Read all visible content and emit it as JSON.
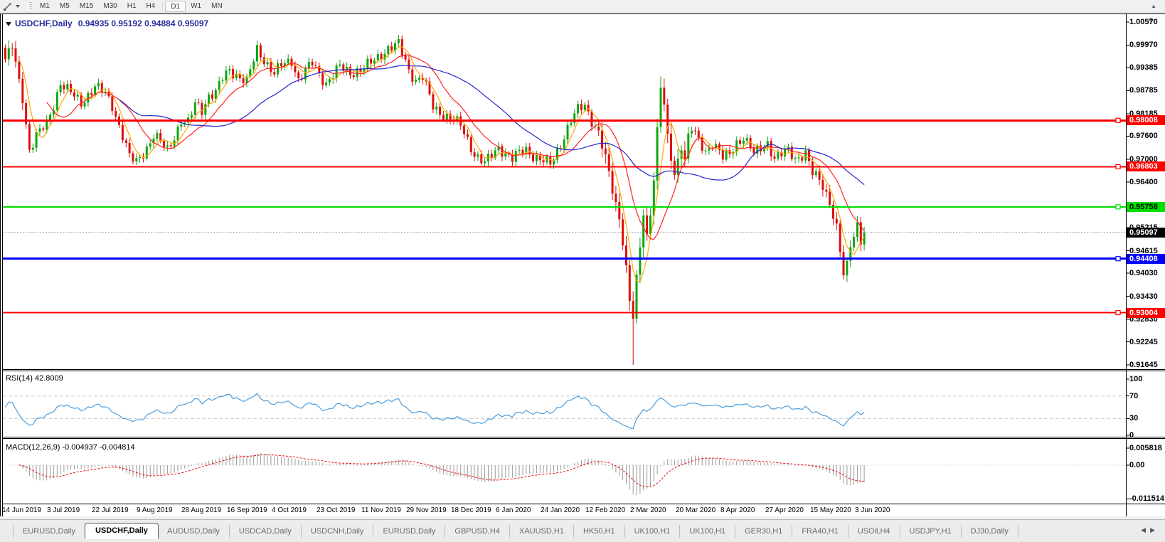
{
  "toolbar": {
    "timeframes": [
      "M1",
      "M5",
      "M15",
      "M30",
      "H1",
      "H4",
      "D1",
      "W1",
      "MN"
    ],
    "active_timeframe": "D1"
  },
  "window": {
    "title_symbol": "USDCHF,Daily",
    "ohlc_text": "0.94935 0.95192 0.94884 0.95097",
    "open": "0.94935",
    "high": "0.95192",
    "low": "0.94884",
    "close": "0.95097"
  },
  "price_axis": {
    "ticks": [
      {
        "v": 1.0057,
        "label": "1.00570"
      },
      {
        "v": 0.9997,
        "label": "0.99970"
      },
      {
        "v": 0.99385,
        "label": "0.99385"
      },
      {
        "v": 0.98785,
        "label": "0.98785"
      },
      {
        "v": 0.98185,
        "label": "0.98185"
      },
      {
        "v": 0.976,
        "label": "0.97600"
      },
      {
        "v": 0.97,
        "label": "0.97000"
      },
      {
        "v": 0.964,
        "label": "0.96400"
      },
      {
        "v": 0.95215,
        "label": "0.95215"
      },
      {
        "v": 0.94615,
        "label": "0.94615"
      },
      {
        "v": 0.9403,
        "label": "0.94030"
      },
      {
        "v": 0.9343,
        "label": "0.93430"
      },
      {
        "v": 0.9283,
        "label": "0.92830"
      },
      {
        "v": 0.92245,
        "label": "0.92245"
      },
      {
        "v": 0.91645,
        "label": "0.91645"
      }
    ]
  },
  "hlines": [
    {
      "value": 0.98008,
      "label": "0.98008",
      "color": "#FF0000",
      "text_color": "#FFFFFF",
      "width": 3
    },
    {
      "value": 0.96803,
      "label": "0.96803",
      "color": "#FF0000",
      "text_color": "#FFFFFF",
      "width": 2
    },
    {
      "value": 0.95758,
      "label": "0.95758",
      "color": "#00DE00",
      "text_color": "#000000",
      "width": 2
    },
    {
      "value": 0.94408,
      "label": "0.94408",
      "color": "#0000FF",
      "text_color": "#FFFFFF",
      "width": 3
    },
    {
      "value": 0.93004,
      "label": "0.93004",
      "color": "#FF0000",
      "text_color": "#FFFFFF",
      "width": 2
    }
  ],
  "current_price": {
    "value": 0.95097,
    "label": "0.95097"
  },
  "rsi_panel": {
    "label": "RSI(14) 42.8009",
    "value": 42.8009,
    "ticks": [
      {
        "v": 100,
        "label": "100"
      },
      {
        "v": 70,
        "label": "70"
      },
      {
        "v": 30,
        "label": "30"
      },
      {
        "v": 0,
        "label": "0"
      }
    ],
    "levels": [
      70,
      30
    ]
  },
  "macd_panel": {
    "label": "MACD(12,26,9) -0.004937 -0.004814",
    "macd_value": -0.004937,
    "signal_value": -0.004814,
    "ticks": [
      {
        "v": 0.005818,
        "label": "0.005818"
      },
      {
        "v": 0,
        "label": "0.00"
      },
      {
        "v": -0.011514,
        "label": "-0.011514"
      }
    ]
  },
  "date_axis": [
    "14 Jun 2019",
    "3 Jul 2019",
    "22 Jul 2019",
    "9 Aug 2019",
    "28 Aug 2019",
    "16 Sep 2019",
    "4 Oct 2019",
    "23 Oct 2019",
    "11 Nov 2019",
    "29 Nov 2019",
    "18 Dec 2019",
    "6 Jan 2020",
    "24 Jan 2020",
    "12 Feb 2020",
    "2 Mar 2020",
    "20 Mar 2020",
    "8 Apr 2020",
    "27 Apr 2020",
    "15 May 2020",
    "3 Jun 2020"
  ],
  "tabs": [
    {
      "label": "EURUSD,Daily",
      "active": false
    },
    {
      "label": "USDCHF,Daily",
      "active": true
    },
    {
      "label": "AUDUSD,Daily",
      "active": false
    },
    {
      "label": "USDCAD,Daily",
      "active": false
    },
    {
      "label": "USDCNH,Daily",
      "active": false
    },
    {
      "label": "EURUSD,Daily",
      "active": false
    },
    {
      "label": "GBPUSD,H4",
      "active": false
    },
    {
      "label": "XAUUSD,H1",
      "active": false
    },
    {
      "label": "HK50,H1",
      "active": false
    },
    {
      "label": "UK100,H1",
      "active": false
    },
    {
      "label": "UK100,H1",
      "active": false
    },
    {
      "label": "GER30,H1",
      "active": false
    },
    {
      "label": "FRA40,H1",
      "active": false
    },
    {
      "label": "USOil,H4",
      "active": false
    },
    {
      "label": "USDJPY,H1",
      "active": false
    },
    {
      "label": "DJ30,Daily",
      "active": false
    }
  ],
  "colors": {
    "up": "#0FA50F",
    "down": "#DE0D0D",
    "ma_fast": "#FFA800",
    "ma_mid": "#FF2222",
    "ma_slow": "#2626CC",
    "rsi": "#4A9EDF",
    "rsi_level": "#c8c8c8",
    "macd_hist": "#9A9A9A",
    "macd_signal": "#E81010",
    "current_line": "#aaaaaa",
    "title": "#2b2b9b"
  },
  "chart_data": {
    "type": "candlestick",
    "symbol": "USDCHF",
    "timeframe": "Daily",
    "n_candles": 250,
    "price_range": [
      0.91645,
      1.0057
    ],
    "moving_averages": [
      {
        "name": "fast",
        "period": 5,
        "color": "#FFA800"
      },
      {
        "name": "medium",
        "period": 13,
        "color": "#FF2222"
      },
      {
        "name": "slow",
        "period": 34,
        "color": "#2626CC"
      }
    ],
    "indicators": [
      "RSI(14)",
      "MACD(12,26,9)"
    ],
    "close_waypoints": [
      [
        0,
        0.996
      ],
      [
        2,
        0.9992
      ],
      [
        4,
        0.99
      ],
      [
        5,
        0.986
      ],
      [
        7,
        0.9725
      ],
      [
        9,
        0.9762
      ],
      [
        12,
        0.979
      ],
      [
        14,
        0.9842
      ],
      [
        16,
        0.99
      ],
      [
        19,
        0.9872
      ],
      [
        22,
        0.9846
      ],
      [
        26,
        0.989
      ],
      [
        29,
        0.987
      ],
      [
        31,
        0.984
      ],
      [
        34,
        0.9762
      ],
      [
        36,
        0.9705
      ],
      [
        38,
        0.9692
      ],
      [
        41,
        0.973
      ],
      [
        43,
        0.9762
      ],
      [
        45,
        0.9744
      ],
      [
        47,
        0.9724
      ],
      [
        49,
        0.976
      ],
      [
        51,
        0.98
      ],
      [
        53,
        0.9792
      ],
      [
        55,
        0.9844
      ],
      [
        57,
        0.983
      ],
      [
        59,
        0.9866
      ],
      [
        61,
        0.9872
      ],
      [
        63,
        0.991
      ],
      [
        65,
        0.9934
      ],
      [
        67,
        0.992
      ],
      [
        70,
        0.99
      ],
      [
        72,
        0.9958
      ],
      [
        73,
        0.9986
      ],
      [
        75,
        0.996
      ],
      [
        78,
        0.9922
      ],
      [
        80,
        0.9944
      ],
      [
        83,
        0.9958
      ],
      [
        85,
        0.9906
      ],
      [
        87,
        0.993
      ],
      [
        89,
        0.995
      ],
      [
        91,
        0.9922
      ],
      [
        93,
        0.9898
      ],
      [
        95,
        0.9918
      ],
      [
        97,
        0.994
      ],
      [
        100,
        0.9926
      ],
      [
        103,
        0.9932
      ],
      [
        106,
        0.995
      ],
      [
        109,
        0.9974
      ],
      [
        111,
        0.9988
      ],
      [
        114,
        0.9998
      ],
      [
        116,
        0.9955
      ],
      [
        117,
        0.9932
      ],
      [
        119,
        0.9906
      ],
      [
        121,
        0.9914
      ],
      [
        124,
        0.9836
      ],
      [
        126,
        0.9822
      ],
      [
        128,
        0.9812
      ],
      [
        130,
        0.98
      ],
      [
        132,
        0.9788
      ],
      [
        134,
        0.975
      ],
      [
        136,
        0.9714
      ],
      [
        139,
        0.9688
      ],
      [
        141,
        0.971
      ],
      [
        143,
        0.9732
      ],
      [
        145,
        0.9716
      ],
      [
        147,
        0.97
      ],
      [
        149,
        0.9716
      ],
      [
        151,
        0.9726
      ],
      [
        153,
        0.971
      ],
      [
        155,
        0.9698
      ],
      [
        158,
        0.9686
      ],
      [
        160,
        0.9722
      ],
      [
        162,
        0.976
      ],
      [
        164,
        0.98
      ],
      [
        166,
        0.9828
      ],
      [
        168,
        0.9842
      ],
      [
        170,
        0.9802
      ],
      [
        172,
        0.9768
      ],
      [
        174,
        0.97
      ],
      [
        176,
        0.962
      ],
      [
        178,
        0.9548
      ],
      [
        180,
        0.942
      ],
      [
        181,
        0.933
      ],
      [
        182,
        0.9286
      ],
      [
        183,
        0.939
      ],
      [
        184,
        0.947
      ],
      [
        185,
        0.9558
      ],
      [
        186,
        0.9502
      ],
      [
        187,
        0.956
      ],
      [
        188,
        0.965
      ],
      [
        189,
        0.9778
      ],
      [
        190,
        0.9888
      ],
      [
        191,
        0.984
      ],
      [
        192,
        0.9758
      ],
      [
        193,
        0.97
      ],
      [
        194,
        0.966
      ],
      [
        195,
        0.97
      ],
      [
        196,
        0.9732
      ],
      [
        197,
        0.9702
      ],
      [
        198,
        0.9758
      ],
      [
        199,
        0.978
      ],
      [
        201,
        0.9746
      ],
      [
        203,
        0.972
      ],
      [
        205,
        0.9744
      ],
      [
        207,
        0.972
      ],
      [
        208,
        0.9702
      ],
      [
        210,
        0.9712
      ],
      [
        212,
        0.9744
      ],
      [
        214,
        0.9758
      ],
      [
        216,
        0.973
      ],
      [
        217,
        0.9712
      ],
      [
        219,
        0.9728
      ],
      [
        221,
        0.9744
      ],
      [
        223,
        0.9702
      ],
      [
        225,
        0.9712
      ],
      [
        227,
        0.9722
      ],
      [
        229,
        0.9702
      ],
      [
        231,
        0.9712
      ],
      [
        232,
        0.9716
      ],
      [
        234,
        0.9662
      ],
      [
        236,
        0.9645
      ],
      [
        237,
        0.9632
      ],
      [
        239,
        0.959
      ],
      [
        241,
        0.952
      ],
      [
        243,
        0.9396
      ],
      [
        244,
        0.942
      ],
      [
        245,
        0.9478
      ],
      [
        247,
        0.9532
      ],
      [
        248,
        0.9492
      ],
      [
        249,
        0.951
      ]
    ],
    "special_wicks": {
      "crash_low_index": 182,
      "crash_low": 0.91645,
      "rebound_high_index": 190,
      "rebound_high": 0.9915
    }
  }
}
